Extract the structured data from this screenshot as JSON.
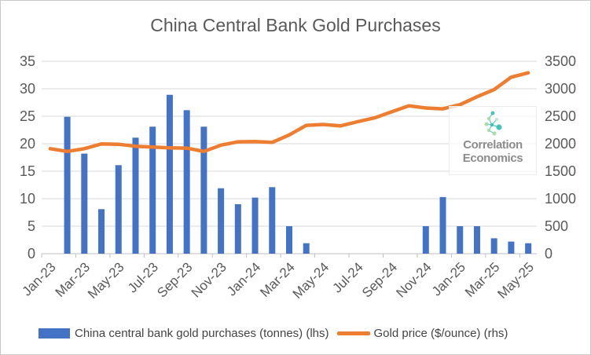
{
  "title": "China Central Bank Gold Purchases",
  "watermark": {
    "line1": "Correlation",
    "line2": "Economics",
    "icon": "molecule-network-icon",
    "icon_teal": "#35beb1",
    "icon_green": "#a8d9a2",
    "icon_pale": "#c2e3d6",
    "text_color": "#8c8c8c"
  },
  "colors": {
    "bar_blue": "#4472C4",
    "line_orange": "#ED7D31",
    "gridline": "#D9D9D9",
    "axis_line": "#BFBFBF",
    "axis_label": "#595959",
    "title_text": "#595959",
    "legend_text": "#434343"
  },
  "chart_data": {
    "type": "bar",
    "subtype": "bar-and-line-dual-axis",
    "grid": true,
    "legend_position": "bottom",
    "categories": [
      "Jan-23",
      "Feb-23",
      "Mar-23",
      "Apr-23",
      "May-23",
      "Jun-23",
      "Jul-23",
      "Aug-23",
      "Sep-23",
      "Oct-23",
      "Nov-23",
      "Dec-23",
      "Jan-24",
      "Feb-24",
      "Mar-24",
      "Apr-24",
      "May-24",
      "Jun-24",
      "Jul-24",
      "Aug-24",
      "Sep-24",
      "Oct-24",
      "Nov-24",
      "Dec-24",
      "Jan-25",
      "Feb-25",
      "Mar-25",
      "Apr-25",
      "May-25"
    ],
    "x_tick_labels": [
      "Jan-23",
      "Mar-23",
      "May-23",
      "Jul-23",
      "Sep-23",
      "Nov-23",
      "Jan-24",
      "Mar-24",
      "May-24",
      "Jul-24",
      "Sep-24",
      "Nov-24",
      "Jan-25",
      "Mar-25",
      "May-25"
    ],
    "series": [
      {
        "name": "China central bank gold purchases (tonnes) (lhs)",
        "type": "bar",
        "axis": "left",
        "color": "#4472C4",
        "values": [
          0,
          24.9,
          18.2,
          8.1,
          16.1,
          21.1,
          23.1,
          28.9,
          26.1,
          23.1,
          11.9,
          9.0,
          10.2,
          12.1,
          5.0,
          1.9,
          0,
          0,
          0,
          0,
          0,
          0,
          5.0,
          10.3,
          5.0,
          5.0,
          2.8,
          2.2,
          1.9
        ]
      },
      {
        "name": "Gold price ($/ounce) (rhs)",
        "type": "line",
        "axis": "right",
        "color": "#ED7D31",
        "values": [
          1910,
          1860,
          1910,
          1995,
          1990,
          1955,
          1940,
          1925,
          1920,
          1860,
          1975,
          2035,
          2040,
          2025,
          2160,
          2335,
          2350,
          2325,
          2400,
          2470,
          2580,
          2690,
          2650,
          2635,
          2710,
          2855,
          2985,
          3210,
          3290
        ]
      }
    ],
    "left_axis": {
      "label": "",
      "min": 0,
      "max": 35,
      "ticks": [
        0,
        5,
        10,
        15,
        20,
        25,
        30,
        35
      ]
    },
    "right_axis": {
      "label": "",
      "min": 0,
      "max": 3500,
      "ticks": [
        0,
        500,
        1000,
        1500,
        2000,
        2500,
        3000,
        3500
      ]
    }
  }
}
